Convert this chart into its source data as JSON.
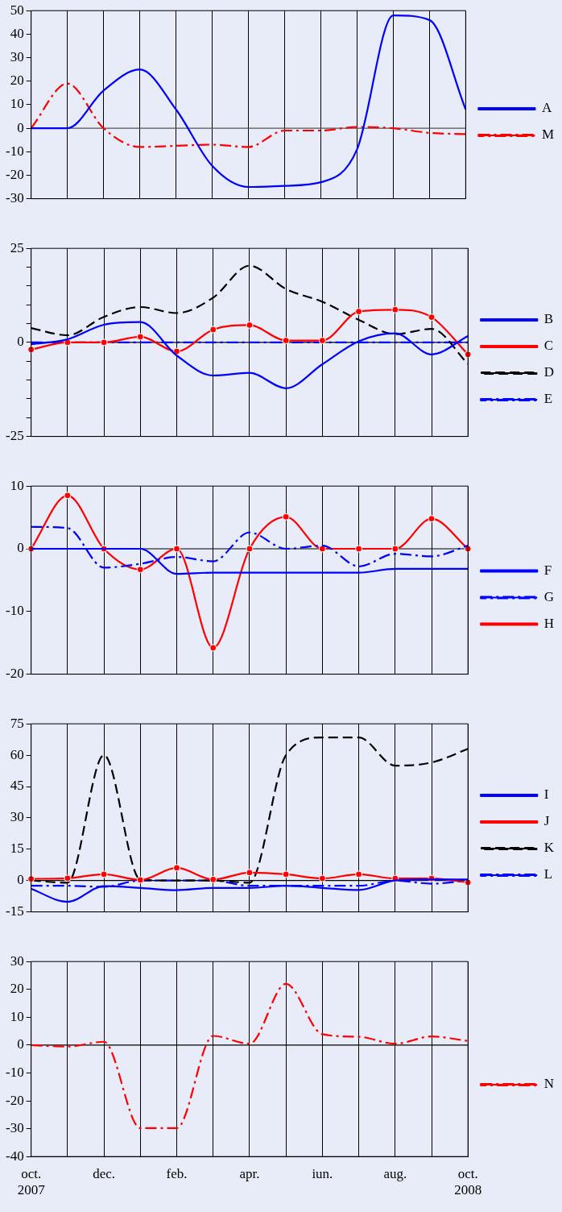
{
  "chart_data": [
    {
      "type": "line",
      "categories": [
        null,
        null,
        null,
        null,
        null,
        null,
        null,
        null,
        null,
        null,
        null,
        null,
        null
      ],
      "ylim": [
        -30,
        50
      ],
      "yticks": [
        -30,
        -20,
        -10,
        0,
        10,
        20,
        30,
        40,
        50
      ],
      "grid": "x",
      "legend": "right",
      "marker": "none",
      "ref_lines": [
        {
          "axis": "y",
          "value": 0,
          "color": "#555555"
        }
      ],
      "series": [
        {
          "name": "A",
          "color": "#0000ff",
          "line_style": "solid",
          "values": [
            0,
            0,
            16,
            25,
            8,
            -16,
            -25,
            -24.5,
            -23,
            -9,
            48,
            46,
            8
          ]
        },
        {
          "name": "M",
          "color": "#ff0000",
          "line_style": "dashdot",
          "values": [
            0,
            19,
            0,
            -8,
            -7.5,
            -7,
            -8,
            -1,
            -1,
            0.5,
            0,
            -2,
            -2.5
          ]
        }
      ]
    },
    {
      "type": "line",
      "categories": [
        null,
        null,
        null,
        null,
        null,
        null,
        null,
        null,
        null,
        null,
        null,
        null,
        null
      ],
      "ylim": [
        -25,
        25
      ],
      "yticks": [
        -25,
        {
          "value": -20,
          "label": null
        },
        {
          "value": -15,
          "label": null
        },
        {
          "value": -10,
          "label": null
        },
        {
          "value": -5,
          "label": null
        },
        0,
        {
          "value": 5,
          "label": null
        },
        {
          "value": 10,
          "label": null
        },
        {
          "value": 15,
          "label": null
        },
        {
          "value": 20,
          "label": null
        },
        25
      ],
      "grid": "x",
      "legend": "right",
      "ref_lines": [
        {
          "axis": "y",
          "value": 0,
          "color": "#000000"
        }
      ],
      "series": [
        {
          "name": "B",
          "color": "#0000ff",
          "line_style": "solid",
          "marker": "none",
          "values": [
            -0.5,
            0.8,
            4.7,
            5.4,
            -3.5,
            -8.8,
            -8.1,
            -12.2,
            -5.8,
            0.3,
            2.4,
            -3.2,
            1.7
          ]
        },
        {
          "name": "C",
          "color": "#ff0000",
          "line_style": "solid",
          "marker": "circle",
          "values": [
            -1.9,
            0,
            0,
            1.5,
            -2.4,
            3.4,
            4.6,
            0.5,
            0.5,
            8.2,
            8.7,
            6.7,
            -3.2
          ]
        },
        {
          "name": "D",
          "color": "#000000",
          "line_style": "dashed",
          "marker": "none",
          "values": [
            3.8,
            1.9,
            6.8,
            9.4,
            7.8,
            11.9,
            20.4,
            14.2,
            10.8,
            6,
            2.2,
            3.6,
            -5.7
          ]
        },
        {
          "name": "E",
          "color": "#0000ff",
          "line_style": "dashdot",
          "marker": "none",
          "values": [
            0,
            0,
            0,
            0,
            0,
            0,
            0,
            0,
            0,
            0,
            0,
            0,
            0
          ]
        }
      ]
    },
    {
      "type": "line",
      "categories": [
        null,
        null,
        null,
        null,
        null,
        null,
        null,
        null,
        null,
        null,
        null,
        null,
        null
      ],
      "ylim": [
        -20,
        10
      ],
      "yticks": [
        -20,
        -10,
        0,
        10
      ],
      "grid": "x",
      "legend": "right",
      "ref_lines": [
        {
          "axis": "y",
          "value": 0,
          "color": "#000000"
        }
      ],
      "series": [
        {
          "name": "F",
          "color": "#0000ff",
          "line_style": "solid",
          "marker": "none",
          "values": [
            0,
            0,
            0,
            0,
            -4,
            -3.8,
            -3.8,
            -3.8,
            -3.8,
            -3.8,
            -3.2,
            -3.2,
            -3.2
          ]
        },
        {
          "name": "G",
          "color": "#0000ff",
          "line_style": "dashdot",
          "marker": "none",
          "values": [
            3.5,
            3.3,
            -3,
            -2.4,
            -1.3,
            -2,
            2.6,
            0,
            0.5,
            -2.8,
            -0.8,
            -1.2,
            0.5
          ]
        },
        {
          "name": "H",
          "color": "#ff0000",
          "line_style": "solid",
          "marker": "circle",
          "values": [
            0,
            8.5,
            0,
            -3.3,
            0,
            -15.8,
            0,
            5.1,
            0,
            0,
            0,
            4.8,
            0
          ]
        }
      ]
    },
    {
      "type": "line",
      "categories": [
        null,
        null,
        null,
        null,
        null,
        null,
        null,
        null,
        null,
        null,
        null,
        null,
        null
      ],
      "ylim": [
        -15,
        75
      ],
      "yticks": [
        -15,
        0,
        15,
        30,
        45,
        60,
        75
      ],
      "grid": "x",
      "legend": "right",
      "ref_lines": [
        {
          "axis": "y",
          "value": 0,
          "color": "#000000"
        }
      ],
      "series": [
        {
          "name": "I",
          "color": "#0000ff",
          "line_style": "solid",
          "marker": "none",
          "values": [
            -4,
            -10.2,
            -2.7,
            -3.5,
            -4.6,
            -3.5,
            -3.5,
            -2.5,
            -3.5,
            -4.5,
            0,
            0.5,
            0.5
          ]
        },
        {
          "name": "J",
          "color": "#ff0000",
          "line_style": "solid",
          "marker": "circle",
          "values": [
            0.8,
            1.1,
            3,
            0.3,
            6.1,
            0.5,
            3.8,
            3,
            1,
            3,
            1,
            1,
            -0.9
          ]
        },
        {
          "name": "K",
          "color": "#000000",
          "line_style": "dashed",
          "marker": "none",
          "values": [
            0,
            -1,
            60,
            0.5,
            0,
            0,
            -1,
            60,
            68.5,
            68.5,
            55,
            56.5,
            63
          ]
        },
        {
          "name": "L",
          "color": "#0000ff",
          "line_style": "dashdot",
          "marker": "none",
          "values": [
            -2.5,
            -2.5,
            -3,
            0,
            0,
            0,
            -2.5,
            -2.5,
            -2.5,
            -2.5,
            0,
            -1.5,
            0
          ]
        }
      ]
    },
    {
      "type": "line",
      "categories": [
        "oct. 2007",
        null,
        "dec.",
        null,
        "feb.",
        null,
        "apr.",
        null,
        "iun.",
        null,
        "aug.",
        null,
        "oct. 2008"
      ],
      "ylim": [
        -40,
        30
      ],
      "yticks": [
        -40,
        -30,
        -20,
        -10,
        0,
        10,
        20,
        30
      ],
      "grid": "x",
      "legend": "right",
      "marker": "none",
      "ref_lines": [
        {
          "axis": "y",
          "value": 0,
          "color": "#000000"
        }
      ],
      "series": [
        {
          "name": "N",
          "color": "#ff0000",
          "line_style": "dashdot",
          "values": [
            0,
            -0.5,
            1.2,
            -29.8,
            -29.8,
            3.3,
            0.5,
            22,
            3.9,
            3,
            0.5,
            3.1,
            1.5
          ]
        }
      ]
    }
  ]
}
